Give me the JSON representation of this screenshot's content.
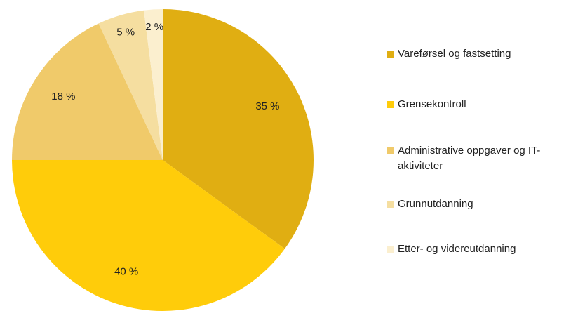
{
  "chart_data": {
    "type": "pie",
    "categories": [
      "Vareførsel og fastsetting",
      "Grensekontroll",
      "Administrative oppgaver og IT-aktiviteter",
      "Grunnutdanning",
      "Etter- og videreutdanning"
    ],
    "values": [
      35,
      40,
      18,
      5,
      2
    ],
    "value_labels": [
      "35 %",
      "40 %",
      "18 %",
      "5 %",
      "2 %"
    ],
    "colors": [
      "#e0ae12",
      "#ffcc0a",
      "#f0ca6a",
      "#f5dea0",
      "#fbefcf"
    ],
    "legend": "right"
  }
}
